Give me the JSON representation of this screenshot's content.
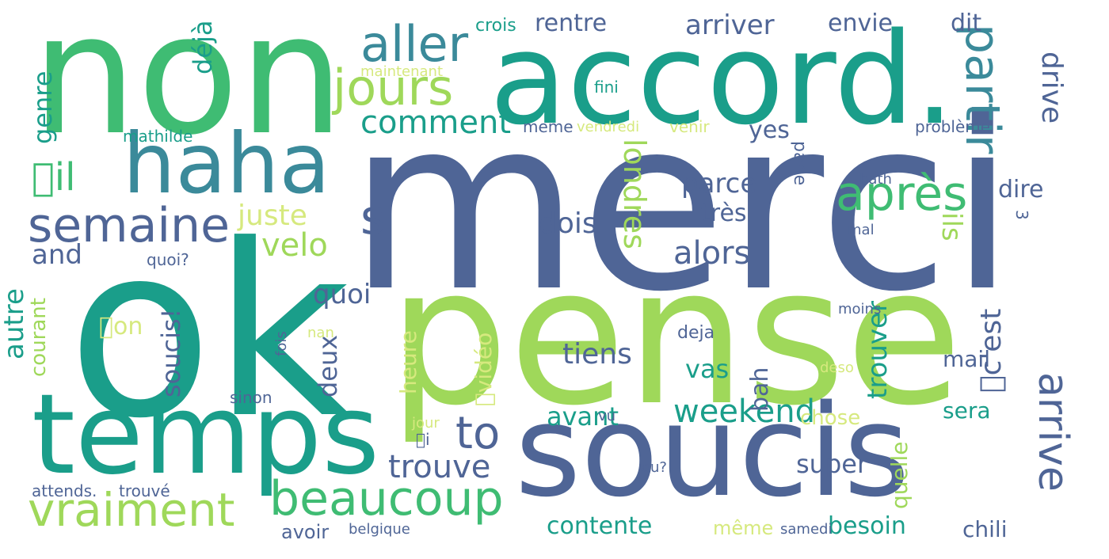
{
  "palette": {
    "dark_blue": "#4f6596",
    "teal_blue": "#3b8a9a",
    "teal": "#1a9e8a",
    "green": "#3fbc73",
    "mint": "#5cc07a",
    "light_green": "#9fd85a",
    "pale_green": "#d6e97e"
  },
  "words": [
    {
      "text": "merci",
      "color": "#4f6596"
    },
    {
      "text": "ok",
      "color": "#1a9e8a"
    },
    {
      "text": "pense",
      "color": "#9fd85a"
    },
    {
      "text": "non",
      "color": "#3fbc73"
    },
    {
      "text": "accord.",
      "color": "#1a9e8a"
    },
    {
      "text": "soucis",
      "color": "#4f6596"
    },
    {
      "text": "temps",
      "color": "#1a9e8a"
    },
    {
      "text": "haha",
      "color": "#3b8a9a"
    },
    {
      "text": "beaucoup",
      "color": "#3fbc73"
    },
    {
      "text": "vraiment",
      "color": "#9fd85a"
    },
    {
      "text": "semaine",
      "color": "#4f6596"
    },
    {
      "text": "jours",
      "color": "#9fd85a"
    },
    {
      "text": "aller",
      "color": "#3b8a9a"
    },
    {
      "text": "après",
      "color": "#3fbc73"
    },
    {
      "text": "partir",
      "color": "#3b8a9a"
    },
    {
      "text": "arrive",
      "color": "#4f6596"
    },
    {
      "text": "weekend",
      "color": "#1a9e8a"
    },
    {
      "text": "trouve",
      "color": "#4f6596"
    },
    {
      "text": "to",
      "color": "#4f6596"
    },
    {
      "text": "s",
      "color": "#4f6596"
    },
    {
      "text": "alors",
      "color": "#4f6596"
    },
    {
      "text": "comment",
      "color": "#1a9e8a"
    },
    {
      "text": "arriver",
      "color": "#4f6596"
    },
    {
      "text": "rentre",
      "color": "#4f6596"
    },
    {
      "text": "envie",
      "color": "#4f6596"
    },
    {
      "text": "dit",
      "color": "#4f6596"
    },
    {
      "text": "drive",
      "color": "#4f6596"
    },
    {
      "text": "\u0000il",
      "color": "#3fbc73"
    },
    {
      "text": "juste",
      "color": "#d6e97e"
    },
    {
      "text": "velo",
      "color": "#9fd85a"
    },
    {
      "text": "londres",
      "color": "#9fd85a"
    },
    {
      "text": "parce",
      "color": "#4f6596"
    },
    {
      "text": "très",
      "color": "#4f6596"
    },
    {
      "text": "dois",
      "color": "#4f6596"
    },
    {
      "text": "ils",
      "color": "#9fd85a"
    },
    {
      "text": "dire",
      "color": "#4f6596"
    },
    {
      "text": "yes",
      "color": "#4f6596"
    },
    {
      "text": "déjà",
      "color": "#1a9e8a"
    },
    {
      "text": "genre",
      "color": "#1a9e8a"
    },
    {
      "text": "and",
      "color": "#4f6596"
    },
    {
      "text": "autre",
      "color": "#1a9e8a"
    },
    {
      "text": "courant",
      "color": "#9fd85a"
    },
    {
      "text": "soucis!",
      "color": "#4f6596"
    },
    {
      "text": "quoi",
      "color": "#4f6596"
    },
    {
      "text": "deux",
      "color": "#4f6596"
    },
    {
      "text": "\u0000on",
      "color": "#d6e97e"
    },
    {
      "text": "\u0000vidéo",
      "color": "#d6e97e"
    },
    {
      "text": "heure",
      "color": "#d6e97e"
    },
    {
      "text": "tiens",
      "color": "#4f6596"
    },
    {
      "text": "vas",
      "color": "#1a9e8a"
    },
    {
      "text": "avant",
      "color": "#1a9e8a"
    },
    {
      "text": "bah",
      "color": "#4f6596"
    },
    {
      "text": "trouver",
      "color": "#1a9e8a"
    },
    {
      "text": "\u0000c'est",
      "color": "#4f6596"
    },
    {
      "text": "mail",
      "color": "#4f6596"
    },
    {
      "text": "sera",
      "color": "#1a9e8a"
    },
    {
      "text": "quelle",
      "color": "#9fd85a"
    },
    {
      "text": "chose",
      "color": "#d6e97e"
    },
    {
      "text": "super",
      "color": "#4f6596"
    },
    {
      "text": "besoin",
      "color": "#1a9e8a"
    },
    {
      "text": "contente",
      "color": "#1a9e8a"
    },
    {
      "text": "même",
      "color": "#d6e97e"
    },
    {
      "text": "chili",
      "color": "#4f6596"
    },
    {
      "text": "avoir",
      "color": "#4f6596"
    },
    {
      "text": "attends.",
      "color": "#4f6596"
    },
    {
      "text": "trouvé",
      "color": "#4f6596"
    },
    {
      "text": "belgique",
      "color": "#4f6596"
    },
    {
      "text": "samedi",
      "color": "#4f6596"
    },
    {
      "text": "crois",
      "color": "#1a9e8a"
    },
    {
      "text": "maintenant",
      "color": "#d6e97e"
    },
    {
      "text": "fini",
      "color": "#1a9e8a"
    },
    {
      "text": "mathilde",
      "color": "#1a9e8a"
    },
    {
      "text": "meme",
      "color": "#4f6596"
    },
    {
      "text": "vendredi",
      "color": "#d6e97e"
    },
    {
      "text": "venir",
      "color": "#d6e97e"
    },
    {
      "text": "problème",
      "color": "#4f6596"
    },
    {
      "text": "parle",
      "color": "#4f6596"
    },
    {
      "text": "bath",
      "color": "#4f6596"
    },
    {
      "text": "3",
      "color": "#4f6596"
    },
    {
      "text": "mal",
      "color": "#4f6596"
    },
    {
      "text": "quoi?",
      "color": "#4f6596"
    },
    {
      "text": "moins",
      "color": "#4f6596"
    },
    {
      "text": "fois",
      "color": "#4f6596"
    },
    {
      "text": "nan",
      "color": "#d6e97e"
    },
    {
      "text": "deja",
      "color": "#4f6596"
    },
    {
      "text": "deso",
      "color": "#d6e97e"
    },
    {
      "text": "sinon",
      "color": "#4f6596"
    },
    {
      "text": "vu",
      "color": "#4f6596"
    },
    {
      "text": "jour",
      "color": "#d6e97e"
    },
    {
      "text": "\u0000i",
      "color": "#4f6596"
    },
    {
      "text": "ou?",
      "color": "#4f6596"
    }
  ]
}
